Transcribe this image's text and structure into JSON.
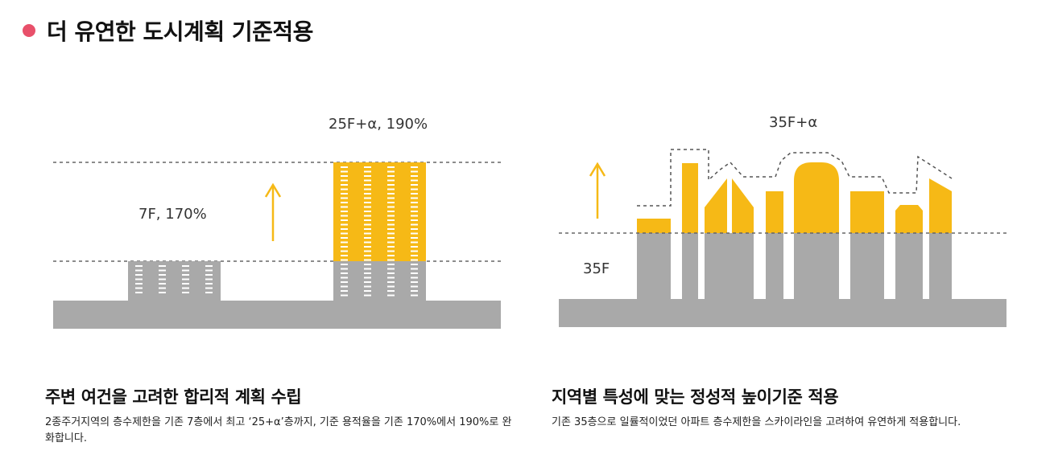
{
  "header": {
    "title": "더 유연한 도시계획 기준적용",
    "accent_color": "#e8506a"
  },
  "colors": {
    "ground": "#a9a9a9",
    "building": "#a9a9a9",
    "highlight": "#f6b916",
    "dash_line": "#666666",
    "arrow": "#f6b916"
  },
  "left_panel": {
    "label_before": "7F, 170%",
    "label_after": "25F+α, 190%",
    "caption_title": "주변 여건을 고려한 합리적 계획 수립",
    "caption_body": "2종주거지역의 층수제한을 기존 7층에서 최고 ‘25+α’층까지, 기준 용적율을 기존 170%에서 190%로 완화합니다."
  },
  "right_panel": {
    "label_top": "35F+α",
    "label_limit": "35F",
    "caption_title": "지역별 특성에 맞는 정성적 높이기준 적용",
    "caption_body": "기존 35층으로 일률적이었던 아파트 층수제한을 스카이라인을 고려하여 유연하게 적용합니다."
  }
}
